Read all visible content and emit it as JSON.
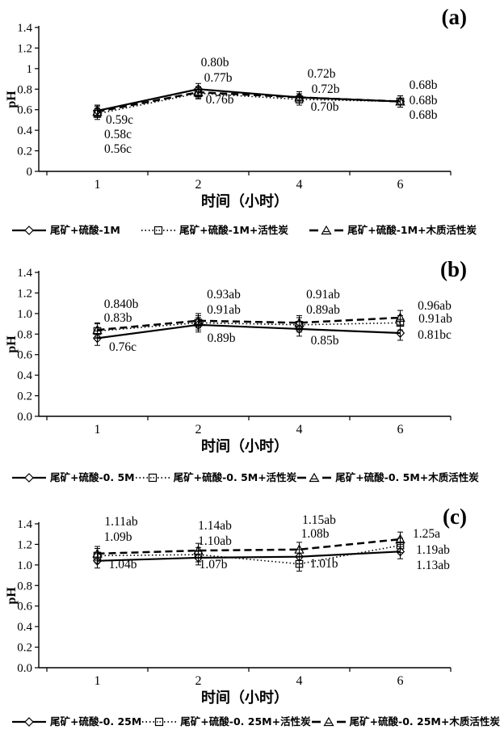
{
  "figure": {
    "background": "#ffffff",
    "ink_color": "#000000"
  },
  "chart_data": [
    {
      "type": "line",
      "panel_label": "(a)",
      "ylabel": "pH",
      "xlabel": "时间（小时）",
      "x_categories": [
        "1",
        "2",
        "4",
        "6"
      ],
      "ylim": [
        0,
        1.4
      ],
      "yticks": [
        "0",
        "0.2",
        "0.4",
        "0.6",
        "0.8",
        "1",
        "1.2",
        "1.4"
      ],
      "grid": "off",
      "legend_position": "bottom",
      "error_bar": 0.055,
      "series": [
        {
          "name": "尾矿+硫酸-1M",
          "style": "solid",
          "marker": "diamond",
          "values": [
            0.59,
            0.8,
            0.72,
            0.68
          ]
        },
        {
          "name": "尾矿+硫酸-1M+活性炭",
          "style": "dotted",
          "marker": "square",
          "values": [
            0.56,
            0.76,
            0.7,
            0.68
          ]
        },
        {
          "name": "尾矿+硫酸-1M+木质活性炭",
          "style": "dashed",
          "marker": "triangle",
          "values": [
            0.58,
            0.77,
            0.72,
            0.68
          ]
        }
      ],
      "point_labels": [
        {
          "x": 148,
          "y": 148,
          "text": "0.59c"
        },
        {
          "x": 146,
          "y": 166,
          "text": "0.58c"
        },
        {
          "x": 146,
          "y": 184,
          "text": "0.56c"
        },
        {
          "x": 266,
          "y": 77,
          "text": "0.80b"
        },
        {
          "x": 270,
          "y": 96,
          "text": "0.77b"
        },
        {
          "x": 272,
          "y": 123,
          "text": "0.76b"
        },
        {
          "x": 398,
          "y": 91,
          "text": "0.72b"
        },
        {
          "x": 403,
          "y": 110,
          "text": "0.72b"
        },
        {
          "x": 402,
          "y": 132,
          "text": "0.70b"
        },
        {
          "x": 524,
          "y": 105,
          "text": "0.68b"
        },
        {
          "x": 524,
          "y": 124,
          "text": "0.68b"
        },
        {
          "x": 524,
          "y": 142,
          "text": "0.68b"
        }
      ]
    },
    {
      "type": "line",
      "panel_label": "(b)",
      "ylabel": "pH",
      "xlabel": "时间（小时）",
      "x_categories": [
        "1",
        "2",
        "4",
        "6"
      ],
      "ylim": [
        0,
        1.4
      ],
      "yticks": [
        "0.0",
        "0.2",
        "0.4",
        "0.6",
        "0.8",
        "1.0",
        "1.2",
        "1.4"
      ],
      "grid": "off",
      "legend_position": "bottom",
      "error_bar": 0.07,
      "series": [
        {
          "name": "尾矿+硫酸-0. 5M",
          "style": "solid",
          "marker": "diamond",
          "values": [
            0.76,
            0.89,
            0.85,
            0.81
          ]
        },
        {
          "name": "尾矿+硫酸-0. 5M+活性炭",
          "style": "dotted",
          "marker": "square",
          "values": [
            0.83,
            0.91,
            0.89,
            0.91
          ]
        },
        {
          "name": "尾矿+硫酸-0. 5M+木质活性炭",
          "style": "dashed",
          "marker": "triangle",
          "values": [
            0.84,
            0.93,
            0.91,
            0.96
          ]
        }
      ],
      "point_labels": [
        {
          "x": 150,
          "y": 76,
          "text": "0.840b"
        },
        {
          "x": 146,
          "y": 93,
          "text": "0.83b"
        },
        {
          "x": 152,
          "y": 129,
          "text": "0.76c"
        },
        {
          "x": 277,
          "y": 64,
          "text": "0.93ab"
        },
        {
          "x": 277,
          "y": 83,
          "text": "0.91ab"
        },
        {
          "x": 274,
          "y": 118,
          "text": "0.89b"
        },
        {
          "x": 400,
          "y": 64,
          "text": "0.91ab"
        },
        {
          "x": 400,
          "y": 83,
          "text": "0.89ab"
        },
        {
          "x": 402,
          "y": 121,
          "text": "0.85b"
        },
        {
          "x": 538,
          "y": 78,
          "text": "0.96ab"
        },
        {
          "x": 539,
          "y": 94,
          "text": "0.91ab"
        },
        {
          "x": 538,
          "y": 114,
          "text": "0.81bc"
        }
      ]
    },
    {
      "type": "line",
      "panel_label": "(c)",
      "ylabel": "pH",
      "xlabel": "时间（小时）",
      "x_categories": [
        "1",
        "2",
        "4",
        "6"
      ],
      "ylim": [
        0,
        1.4
      ],
      "yticks": [
        "0.0",
        "0.2",
        "0.4",
        "0.6",
        "0.8",
        "1.0",
        "1.2",
        "1.4"
      ],
      "grid": "off",
      "legend_position": "bottom",
      "error_bar": 0.07,
      "series": [
        {
          "name": "尾矿+硫酸-0. 25M",
          "style": "solid",
          "marker": "diamond",
          "values": [
            1.04,
            1.07,
            1.08,
            1.13
          ]
        },
        {
          "name": "尾矿+硫酸-0. 25M+活性炭",
          "style": "dotted",
          "marker": "square",
          "values": [
            1.09,
            1.1,
            1.01,
            1.19
          ]
        },
        {
          "name": "尾矿+硫酸-0. 25M+木质活性炭",
          "style": "dashed",
          "marker": "triangle",
          "values": [
            1.11,
            1.14,
            1.15,
            1.25
          ]
        }
      ],
      "point_labels": [
        {
          "x": 150,
          "y": 39,
          "text": "1.11ab"
        },
        {
          "x": 146,
          "y": 58,
          "text": "1.09b"
        },
        {
          "x": 152,
          "y": 92,
          "text": "1.04b"
        },
        {
          "x": 266,
          "y": 44,
          "text": "1.14ab"
        },
        {
          "x": 266,
          "y": 63,
          "text": "1.10ab"
        },
        {
          "x": 264,
          "y": 92,
          "text": "1.07b"
        },
        {
          "x": 395,
          "y": 37,
          "text": "1.15ab"
        },
        {
          "x": 390,
          "y": 54,
          "text": "1.08b"
        },
        {
          "x": 401,
          "y": 91,
          "text": "1.01b"
        },
        {
          "x": 528,
          "y": 54,
          "text": "1.25a"
        },
        {
          "x": 536,
          "y": 74,
          "text": "1.19ab"
        },
        {
          "x": 536,
          "y": 93,
          "text": "1.13ab"
        }
      ]
    }
  ]
}
